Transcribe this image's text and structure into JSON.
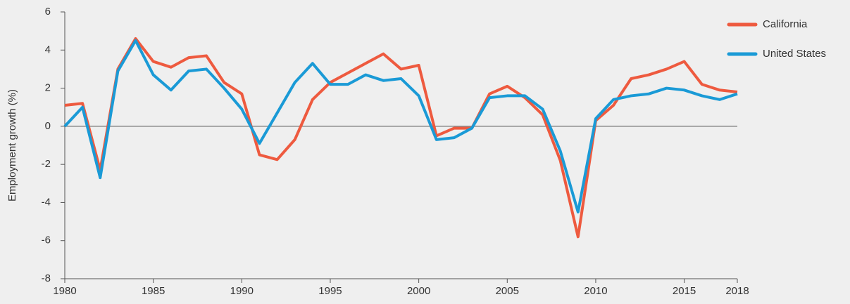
{
  "chart_data": {
    "type": "line",
    "y_label": "Employment growth (%)",
    "x": [
      1980,
      1981,
      1982,
      1983,
      1984,
      1985,
      1986,
      1987,
      1988,
      1989,
      1990,
      1991,
      1992,
      1993,
      1994,
      1995,
      1996,
      1997,
      1998,
      1999,
      2000,
      2001,
      2002,
      2003,
      2004,
      2005,
      2006,
      2007,
      2008,
      2009,
      2010,
      2011,
      2012,
      2013,
      2014,
      2015,
      2016,
      2017,
      2018
    ],
    "series": [
      {
        "name": "California",
        "color": "#ee5a3f",
        "values": [
          1.1,
          1.2,
          -2.3,
          3.0,
          4.6,
          3.4,
          3.1,
          3.6,
          3.7,
          2.3,
          1.7,
          -1.5,
          -1.75,
          -0.7,
          1.4,
          2.3,
          2.8,
          3.3,
          3.8,
          3.0,
          3.2,
          -0.5,
          -0.1,
          -0.1,
          1.7,
          2.1,
          1.5,
          0.6,
          -1.8,
          -5.8,
          0.3,
          1.1,
          2.5,
          2.7,
          3.0,
          3.4,
          2.2,
          1.9,
          1.8
        ]
      },
      {
        "name": "United States",
        "color": "#1a9ad6",
        "values": [
          0.0,
          1.0,
          -2.7,
          2.9,
          4.5,
          2.7,
          1.9,
          2.9,
          3.0,
          2.0,
          0.9,
          -0.9,
          0.7,
          2.3,
          3.3,
          2.2,
          2.2,
          2.7,
          2.4,
          2.5,
          1.6,
          -0.7,
          -0.6,
          -0.1,
          1.5,
          1.6,
          1.6,
          0.9,
          -1.3,
          -4.5,
          0.4,
          1.4,
          1.6,
          1.7,
          2.0,
          1.9,
          1.6,
          1.4,
          1.7
        ]
      }
    ],
    "xlim": [
      1980,
      2018
    ],
    "xticks": [
      1980,
      1985,
      1990,
      1995,
      2000,
      2005,
      2010,
      2015,
      2018
    ],
    "ylim": [
      -8,
      6
    ],
    "yticks": [
      -8,
      -6,
      -4,
      -2,
      0,
      2,
      4,
      6
    ],
    "legend": "top-right",
    "grid": false
  }
}
